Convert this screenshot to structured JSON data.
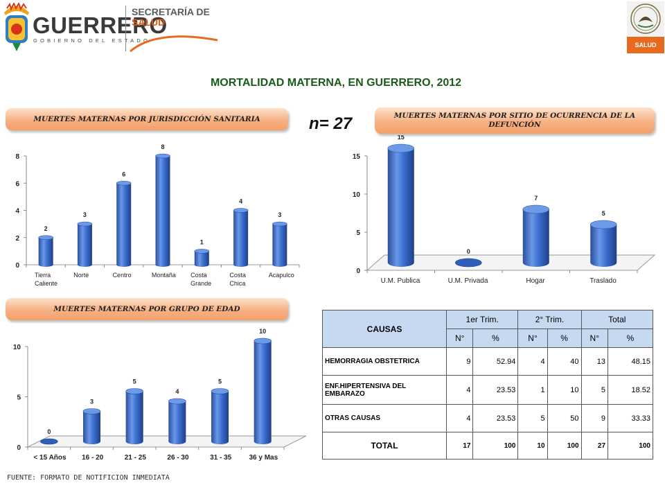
{
  "header": {
    "brand_name": "GUERRERO",
    "brand_sub": "GOBIERNO DEL ESTADO",
    "secretaria_line1": "SECRETARÍA DE",
    "secretaria_line2": "SALUD",
    "salud_tab": "SALUD",
    "colors": {
      "accent": "#e86a1e",
      "brand_gray": "#3a3a3a"
    }
  },
  "page_title": "MORTALIDAD MATERNA, EN GUERRERO, 2012",
  "n_label": "n= 27",
  "source_text": "FUENTE: FORMATO DE NOTIFICION INMEDIATA",
  "chart_data": [
    {
      "type": "bar",
      "title": "MUERTES MATERNAS POR JURISDICCIÓN SANITARIA",
      "categories": [
        "Tierra Caliente",
        "Norte",
        "Centro",
        "Montaña",
        "Costa Grande",
        "Costa Chica",
        "Acapulco"
      ],
      "category_lines": [
        [
          "Tierra",
          "Caliente"
        ],
        [
          "Norte"
        ],
        [
          "Centro"
        ],
        [
          "Montaña"
        ],
        [
          "Costa",
          "Grande"
        ],
        [
          "Costa",
          "Chica"
        ],
        [
          "Acapulco"
        ]
      ],
      "values": [
        2,
        3,
        6,
        8,
        1,
        4,
        3
      ],
      "yticks": [
        0,
        2,
        4,
        6,
        8
      ],
      "ylim": [
        0,
        8
      ],
      "bar_color": "#3a6fd0"
    },
    {
      "type": "bar",
      "title": "MUERTES MATERNAS POR SITIO DE OCURRENCIA DE LA DEFUNCIÓN",
      "categories": [
        "U.M. Publica",
        "U.M. Privada",
        "Hogar",
        "Traslado"
      ],
      "category_lines": [
        [
          "U.M. Publica"
        ],
        [
          "U.M. Privada"
        ],
        [
          "Hogar"
        ],
        [
          "Traslado"
        ]
      ],
      "values": [
        15,
        0,
        7,
        5
      ],
      "yticks": [
        0,
        5,
        10,
        15
      ],
      "ylim": [
        0,
        15
      ],
      "bar_color": "#3a6fd0"
    },
    {
      "type": "bar",
      "title": "MUERTES MATERNAS POR GRUPO DE EDAD",
      "categories": [
        "< 15 Años",
        "16 - 20",
        "21 - 25",
        "26 - 30",
        "31 - 35",
        "36 y Mas"
      ],
      "category_lines": [
        [
          "< 15 Años"
        ],
        [
          "16 - 20"
        ],
        [
          "21 - 25"
        ],
        [
          "26 - 30"
        ],
        [
          "31 - 35"
        ],
        [
          "36 y Mas"
        ]
      ],
      "values": [
        0,
        3,
        5,
        4,
        5,
        10
      ],
      "yticks": [
        0,
        5,
        10
      ],
      "ylim": [
        0,
        10
      ],
      "bar_color": "#3a6fd0"
    },
    {
      "type": "table",
      "title": "CAUSAS",
      "header_groups": [
        "1er Trim.",
        "2° Trim.",
        "Total"
      ],
      "subheaders": [
        "N°",
        "%",
        "N°",
        "%",
        "N°",
        "%"
      ],
      "rows": [
        {
          "cause": "HEMORRAGIA OBSTETRICA",
          "values": [
            "9",
            "52.94",
            "4",
            "40",
            "13",
            "48.15"
          ]
        },
        {
          "cause": "ENF.HIPERTENSIVA DEL EMBARAZO",
          "values": [
            "4",
            "23.53",
            "1",
            "10",
            "5",
            "18.52"
          ]
        },
        {
          "cause": "OTRAS CAUSAS",
          "values": [
            "4",
            "23.53",
            "5",
            "50",
            "9",
            "33.33"
          ]
        }
      ],
      "total_row": {
        "cause": "TOTAL",
        "values": [
          "17",
          "100",
          "10",
          "100",
          "27",
          "100"
        ]
      }
    }
  ]
}
